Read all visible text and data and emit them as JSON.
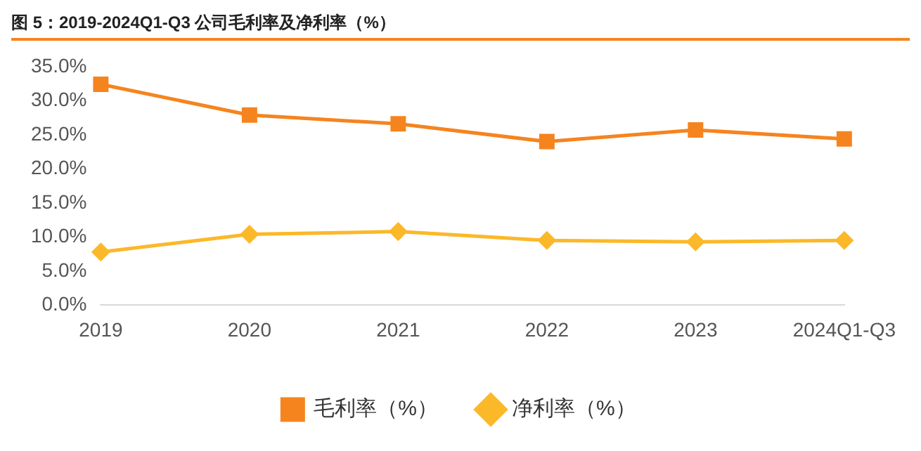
{
  "chart_data": {
    "type": "line",
    "title": "图 5：2019-2024Q1-Q3 公司毛利率及净利率（%）",
    "categories": [
      "2019",
      "2020",
      "2021",
      "2022",
      "2023",
      "2024Q1-Q3"
    ],
    "series": [
      {
        "name": "毛利率（%）",
        "color": "#f5841f",
        "marker": "square",
        "values": [
          32.4,
          27.9,
          26.6,
          24.0,
          25.7,
          24.4
        ]
      },
      {
        "name": "净利率（%）",
        "color": "#fbb829",
        "marker": "diamond",
        "values": [
          7.8,
          10.4,
          10.8,
          9.5,
          9.3,
          9.5
        ]
      }
    ],
    "ylim": [
      0,
      35
    ],
    "yticks": [
      {
        "value": 0,
        "label": "0.0%"
      },
      {
        "value": 5,
        "label": "5.0%"
      },
      {
        "value": 10,
        "label": "10.0%"
      },
      {
        "value": 15,
        "label": "15.0%"
      },
      {
        "value": 20,
        "label": "20.0%"
      },
      {
        "value": 25,
        "label": "25.0%"
      },
      {
        "value": 30,
        "label": "30.0%"
      },
      {
        "value": 35,
        "label": "35.0%"
      }
    ],
    "grid": false,
    "legend": "bottom"
  }
}
